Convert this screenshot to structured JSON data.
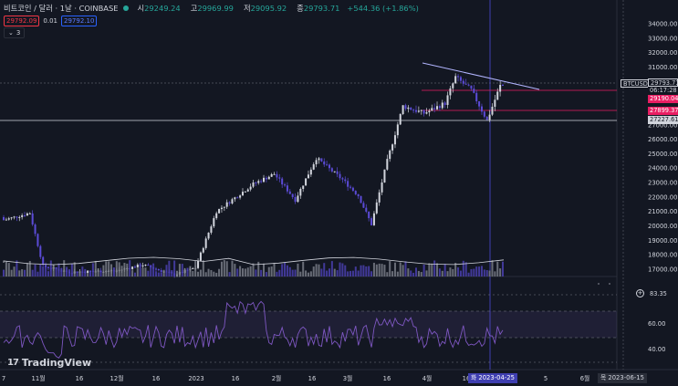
{
  "header": {
    "symbol": "비트코인 / 달러 · 1날 · COINBASE",
    "open_label": "시",
    "open": "29249.24",
    "high_label": "고",
    "high": "29969.99",
    "low_label": "저",
    "low": "29095.92",
    "close_label": "종",
    "close": "29793.71",
    "change": "+544.36 (+1.86%)"
  },
  "quote": {
    "sell": "29792.09",
    "spread": "0.01",
    "buy": "29792.10"
  },
  "indicator_toggle": {
    "count": "3"
  },
  "price_axis": {
    "ticks": [
      "34000.00",
      "33000.00",
      "32000.00",
      "31000.00",
      "30000.00",
      "28000.00",
      "27000.00",
      "26000.00",
      "25000.00",
      "24000.00",
      "23000.00",
      "22000.00",
      "21000.00",
      "20000.00",
      "19000.00",
      "18000.00",
      "17000.00"
    ],
    "symbol_tag": "BTCUSD",
    "tags": {
      "last": "29793.71",
      "countdown": "06:17:28",
      "level1": "29190.04",
      "level2": "27899.37",
      "level3": "27227.61"
    }
  },
  "rsi": {
    "value": "83.35",
    "ticks": [
      "60.00",
      "40.00"
    ]
  },
  "time_axis": {
    "labels": [
      "7",
      "11월",
      "16",
      "12월",
      "16",
      "2023",
      "16",
      "2월",
      "16",
      "3월",
      "16",
      "4월",
      "16",
      "16",
      "5",
      "6월"
    ],
    "cursor_date": "화 2023-04-25",
    "end_date": "목 2023-06-15"
  },
  "logo": {
    "text": "TradingView"
  },
  "colors": {
    "background": "#131722",
    "up": "#d1d4dc",
    "down": "#5b4bd6",
    "rsi": "#7e57c2",
    "level_red": "#e91e63",
    "cursor": "#3f3fb0"
  }
}
